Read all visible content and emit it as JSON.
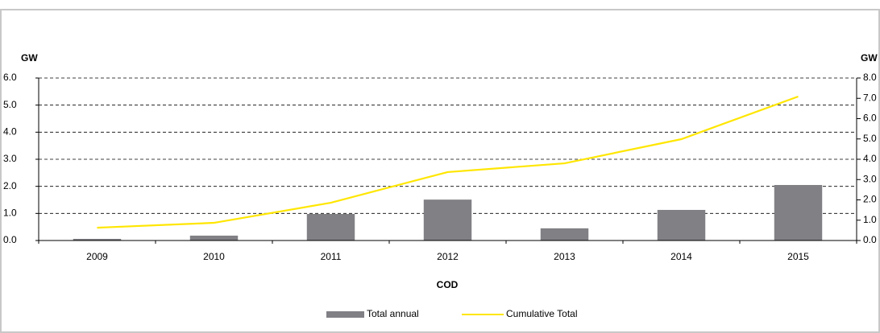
{
  "chart_data": {
    "type": "bar-line",
    "y_label": "GW",
    "y2_label": "GW",
    "x_label": "COD",
    "categories": [
      "2009",
      "2010",
      "2011",
      "2012",
      "2013",
      "2014",
      "2015"
    ],
    "series": [
      {
        "name": "Total annual",
        "type": "bar",
        "color": "#808085",
        "values": [
          0.06,
          0.18,
          0.98,
          1.51,
          0.45,
          1.13,
          2.05
        ]
      },
      {
        "name": "Cumulative Total",
        "type": "line",
        "axis": "y2",
        "color": "#ffe600",
        "values": [
          0.63,
          0.87,
          1.86,
          3.37,
          3.8,
          4.99,
          7.09
        ]
      }
    ],
    "ylim": [
      0,
      6
    ],
    "yticks": [
      {
        "value": 0,
        "label": "0.0"
      },
      {
        "value": 1,
        "label": "1.0"
      },
      {
        "value": 2,
        "label": "2.0"
      },
      {
        "value": 3,
        "label": "3.0"
      },
      {
        "value": 4,
        "label": "4.0"
      },
      {
        "value": 5,
        "label": "5.0"
      },
      {
        "value": 6,
        "label": "6.0"
      }
    ],
    "y2lim": [
      0,
      8
    ],
    "y2ticks": [
      {
        "value": 0,
        "label": "0.0"
      },
      {
        "value": 1,
        "label": "1.0"
      },
      {
        "value": 2,
        "label": "2.0"
      },
      {
        "value": 3,
        "label": "3.0"
      },
      {
        "value": 4,
        "label": "4.0"
      },
      {
        "value": 5,
        "label": "5.0"
      },
      {
        "value": 6,
        "label": "6.0"
      },
      {
        "value": 7,
        "label": "7.0"
      },
      {
        "value": 8,
        "label": "8.0"
      }
    ],
    "grid": true
  }
}
